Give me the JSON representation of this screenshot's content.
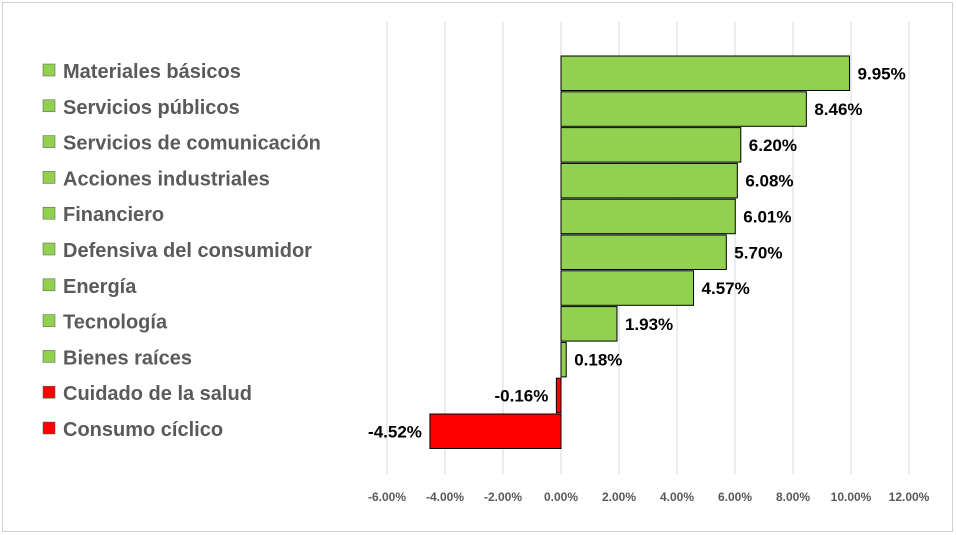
{
  "chart_data": {
    "type": "bar",
    "orientation": "horizontal",
    "categories": [
      "Materiales básicos",
      "Servicios públicos",
      "Servicios de comunicación",
      "Acciones industriales",
      "Financiero",
      "Defensiva del consumidor",
      "Energía",
      "Tecnología",
      "Bienes raíces",
      "Cuidado de la salud",
      "Consumo cíclico"
    ],
    "values": [
      9.95,
      8.46,
      6.2,
      6.08,
      6.01,
      5.7,
      4.57,
      1.93,
      0.18,
      -0.16,
      -4.52
    ],
    "value_labels": [
      "9.95%",
      "8.46%",
      "6.20%",
      "6.08%",
      "6.01%",
      "5.70%",
      "4.57%",
      "1.93%",
      "0.18%",
      "-0.16%",
      "-4.52%"
    ],
    "x_ticks": [
      "-6.00%",
      "-4.00%",
      "-2.00%",
      "0.00%",
      "2.00%",
      "4.00%",
      "6.00%",
      "8.00%",
      "10.00%",
      "12.00%"
    ],
    "xlim": [
      -6,
      12
    ],
    "grid": true,
    "legend": "left",
    "colors": {
      "positive": "#92d050",
      "negative": "#ff0000",
      "bar_border": "#000000",
      "grid": "#d9d9d9"
    }
  }
}
